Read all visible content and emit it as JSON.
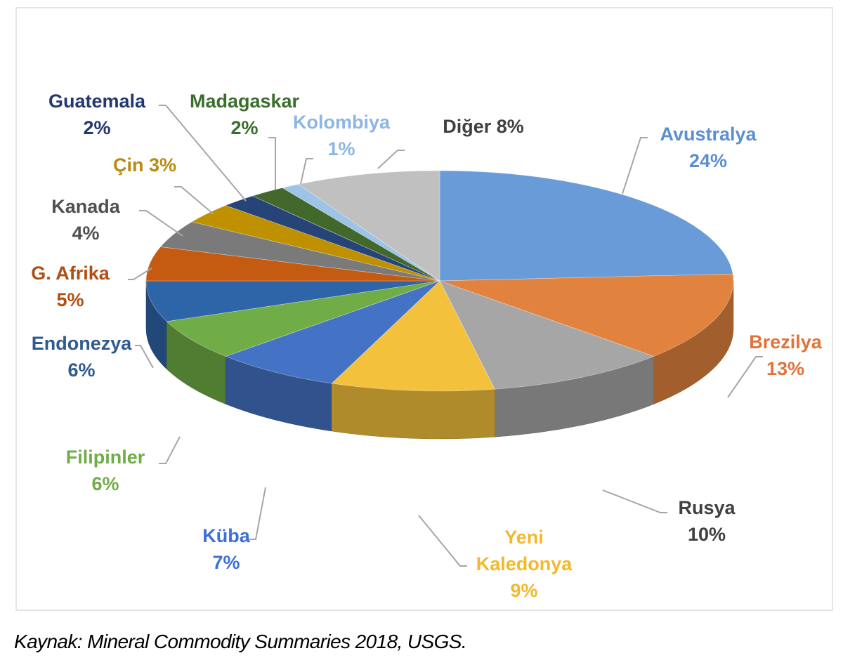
{
  "chart_data": {
    "type": "pie",
    "style": "3d",
    "title": "",
    "categories": [
      "Avustralya",
      "Brezilya",
      "Rusya",
      "Yeni Kaledonya",
      "Küba",
      "Filipinler",
      "Endonezya",
      "G. Afrika",
      "Kanada",
      "Çin",
      "Guatemala",
      "Madagaskar",
      "Kolombiya",
      "Diğer"
    ],
    "values": [
      24,
      13,
      10,
      9,
      7,
      6,
      6,
      5,
      4,
      3,
      2,
      2,
      1,
      8
    ],
    "labels": [
      {
        "name": [
          "Avustralya"
        ],
        "value": "24%",
        "color": "#5b8fd0"
      },
      {
        "name": [
          "Brezilya"
        ],
        "value": "13%",
        "color": "#e0733a"
      },
      {
        "name": [
          "Rusya"
        ],
        "value": "10%",
        "color": "#404040"
      },
      {
        "name": [
          "Yeni",
          "Kaledonya"
        ],
        "value": "9%",
        "color": "#f2b92a"
      },
      {
        "name": [
          "Küba"
        ],
        "value": "7%",
        "color": "#3f6fd6"
      },
      {
        "name": [
          "Filipinler"
        ],
        "value": "6%",
        "color": "#70ad47"
      },
      {
        "name": [
          "Endonezya"
        ],
        "value": "6%",
        "color": "#2f5a91"
      },
      {
        "name": [
          "G. Afrika"
        ],
        "value": "5%",
        "color": "#b14e12"
      },
      {
        "name": [
          "Kanada"
        ],
        "value": "4%",
        "color": "#505050"
      },
      {
        "name": [
          "Çin 3%"
        ],
        "value": "",
        "color": "#b88a10"
      },
      {
        "name": [
          "Guatemala"
        ],
        "value": "2%",
        "color": "#23386f"
      },
      {
        "name": [
          "Madagaskar"
        ],
        "value": "2%",
        "color": "#3a6e2b"
      },
      {
        "name": [
          "Kolombiya"
        ],
        "value": "1%",
        "color": "#8eb6e2"
      },
      {
        "name": [
          "Diğer 8%"
        ],
        "value": "",
        "color": "#404040"
      }
    ],
    "slice_colors": [
      "#6a9bd9",
      "#e2823f",
      "#a6a6a6",
      "#f4c13d",
      "#4472c4",
      "#70ad47",
      "#2e64a8",
      "#c55a11",
      "#7a7a7a",
      "#bf9000",
      "#264478",
      "#43682b",
      "#9dc3e6",
      "#c0c0c0"
    ],
    "legend": "none"
  },
  "source": "Kaynak: Mineral Commodity Summaries 2018, USGS."
}
